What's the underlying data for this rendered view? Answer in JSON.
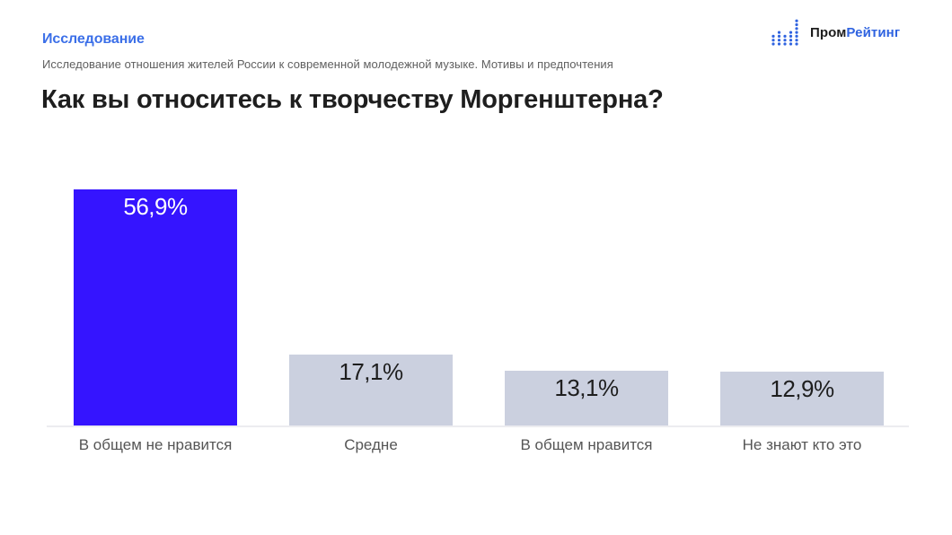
{
  "header": {
    "section_label": "Исследование",
    "subtitle": "Исследование отношения жителей России к современной молодежной музыке. Мотивы и предпочтения",
    "question": "Как вы относитесь к творчеству Моргенштерна?"
  },
  "logo": {
    "icon": "equalizer-dots-icon",
    "text_part1": "Пром",
    "text_part2": "Рейтинг",
    "color": "#2f63e0"
  },
  "colors": {
    "highlight_bar": "#3514ff",
    "default_bar": "#cbd0df",
    "highlight_text": "#ffffff",
    "default_text": "#1e1e1e",
    "section_label": "#3b6fe8"
  },
  "chart_data": {
    "type": "bar",
    "title": "Как вы относитесь к творчеству Моргенштерна?",
    "subtitle": "Исследование отношения жителей России к современной молодежной музыке. Мотивы и предпочтения",
    "categories": [
      "В общем не нравится",
      "Средне",
      "В общем нравится",
      "Не знают кто это"
    ],
    "values": [
      56.9,
      17.1,
      13.1,
      12.9
    ],
    "value_labels": [
      "56,9%",
      "17,1%",
      "13,1%",
      "12,9%"
    ],
    "unit": "%",
    "xlabel": "",
    "ylabel": "",
    "ylim": [
      0,
      60
    ],
    "grid": false,
    "legend": "none",
    "highlighted_index": 0,
    "bars": [
      {
        "label": "В общем не нравится",
        "value": 56.9,
        "value_label": "56,9%",
        "highlight": true
      },
      {
        "label": "Средне",
        "value": 17.1,
        "value_label": "17,1%",
        "highlight": false
      },
      {
        "label": "В общем нравится",
        "value": 13.1,
        "value_label": "13,1%",
        "highlight": false
      },
      {
        "label": "Не знают кто это",
        "value": 12.9,
        "value_label": "12,9%",
        "highlight": false
      }
    ]
  }
}
